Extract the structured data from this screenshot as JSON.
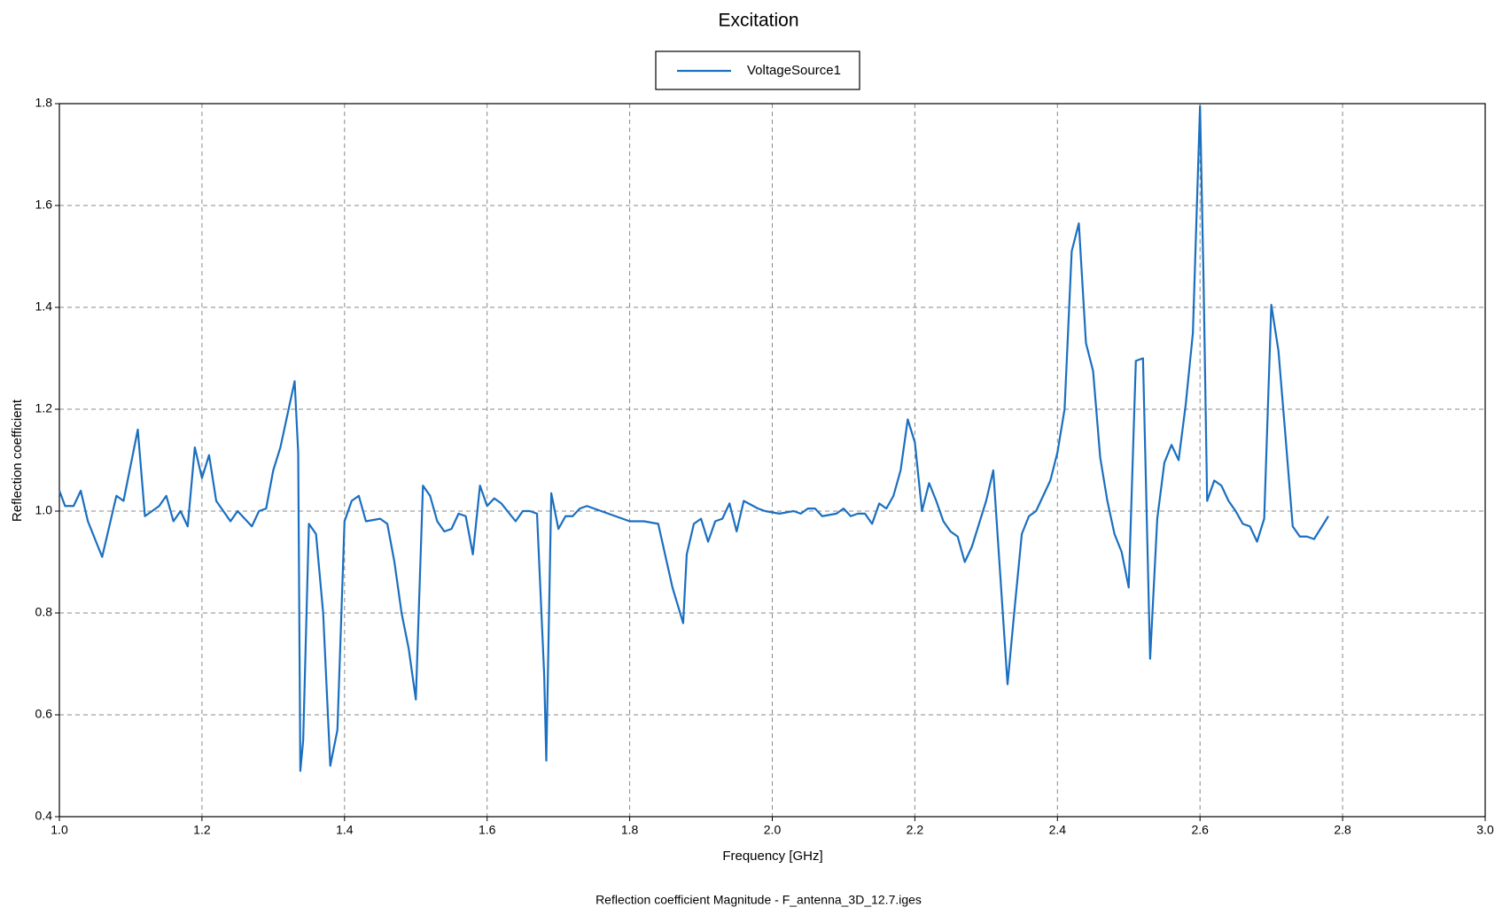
{
  "chart_data": {
    "type": "line",
    "title": "Excitation",
    "xlabel": "Frequency [GHz]",
    "ylabel": "Reflection coefficient",
    "footnote": "Reflection coefficient Magnitude - F_antenna_3D_12.7.iges",
    "legend": "top",
    "grid": true,
    "xlim": [
      1.0,
      3.0
    ],
    "ylim": [
      0.4,
      1.8
    ],
    "xticks": [
      {
        "value": 1,
        "label": "1.0"
      },
      1.2,
      1.4,
      1.6,
      1.8,
      {
        "value": 2,
        "label": "2.0"
      },
      2.2,
      2.4,
      2.6,
      2.8,
      {
        "value": 3,
        "label": "3.0"
      }
    ],
    "yticks": [
      0.4,
      0.6,
      0.8,
      {
        "value": 1,
        "label": "1.0"
      },
      1.2,
      1.4,
      1.6,
      1.8
    ],
    "x": [
      1.0,
      1.008,
      1.02,
      1.03,
      1.04,
      1.06,
      1.07,
      1.08,
      1.09,
      1.11,
      1.12,
      1.14,
      1.15,
      1.16,
      1.17,
      1.18,
      1.19,
      1.2,
      1.21,
      1.22,
      1.24,
      1.25,
      1.27,
      1.28,
      1.29,
      1.3,
      1.31,
      1.33,
      1.335,
      1.338,
      1.342,
      1.35,
      1.36,
      1.37,
      1.38,
      1.39,
      1.4,
      1.41,
      1.42,
      1.43,
      1.45,
      1.46,
      1.47,
      1.48,
      1.49,
      1.5,
      1.51,
      1.52,
      1.53,
      1.54,
      1.55,
      1.56,
      1.57,
      1.58,
      1.59,
      1.6,
      1.61,
      1.62,
      1.64,
      1.65,
      1.66,
      1.67,
      1.68,
      1.683,
      1.69,
      1.7,
      1.71,
      1.72,
      1.73,
      1.74,
      1.76,
      1.78,
      1.8,
      1.82,
      1.84,
      1.86,
      1.875,
      1.88,
      1.89,
      1.9,
      1.91,
      1.92,
      1.93,
      1.94,
      1.95,
      1.96,
      1.98,
      1.99,
      2.01,
      2.03,
      2.04,
      2.05,
      2.06,
      2.07,
      2.09,
      2.1,
      2.11,
      2.12,
      2.13,
      2.14,
      2.15,
      2.16,
      2.17,
      2.18,
      2.19,
      2.2,
      2.21,
      2.22,
      2.23,
      2.24,
      2.25,
      2.26,
      2.27,
      2.28,
      2.29,
      2.3,
      2.31,
      2.32,
      2.33,
      2.34,
      2.35,
      2.36,
      2.37,
      2.38,
      2.39,
      2.4,
      2.41,
      2.42,
      2.43,
      2.44,
      2.45,
      2.46,
      2.47,
      2.48,
      2.49,
      2.5,
      2.51,
      2.52,
      2.53,
      2.54,
      2.55,
      2.56,
      2.57,
      2.58,
      2.59,
      2.6,
      2.605,
      2.61,
      2.62,
      2.63,
      2.64,
      2.65,
      2.66,
      2.67,
      2.68,
      2.69,
      2.7,
      2.71,
      2.72,
      2.73,
      2.74,
      2.75,
      2.76,
      2.78
    ],
    "series": [
      {
        "name": "VoltageSource1",
        "color": "#1a6fc0",
        "values": [
          1.04,
          1.01,
          1.01,
          1.04,
          0.98,
          0.91,
          0.97,
          1.03,
          1.02,
          1.16,
          0.99,
          1.01,
          1.03,
          0.98,
          1.0,
          0.97,
          1.125,
          1.065,
          1.11,
          1.02,
          0.98,
          1.0,
          0.97,
          1.0,
          1.005,
          1.08,
          1.125,
          1.255,
          1.115,
          0.49,
          0.55,
          0.975,
          0.955,
          0.8,
          0.5,
          0.57,
          0.98,
          1.02,
          1.03,
          0.98,
          0.985,
          0.975,
          0.9,
          0.8,
          0.73,
          0.63,
          1.05,
          1.03,
          0.98,
          0.96,
          0.965,
          0.995,
          0.99,
          0.915,
          1.05,
          1.01,
          1.025,
          1.015,
          0.98,
          1.0,
          1.0,
          0.995,
          0.68,
          0.51,
          1.035,
          0.965,
          0.99,
          0.99,
          1.005,
          1.01,
          1.0,
          0.99,
          0.98,
          0.98,
          0.975,
          0.85,
          0.78,
          0.915,
          0.975,
          0.985,
          0.94,
          0.98,
          0.985,
          1.015,
          0.96,
          1.02,
          1.005,
          1.0,
          0.995,
          1.0,
          0.995,
          1.005,
          1.005,
          0.99,
          0.995,
          1.005,
          0.99,
          0.995,
          0.995,
          0.975,
          1.015,
          1.005,
          1.03,
          1.08,
          1.18,
          1.135,
          1.0,
          1.055,
          1.02,
          0.98,
          0.96,
          0.95,
          0.9,
          0.93,
          0.975,
          1.02,
          1.08,
          0.87,
          0.66,
          0.81,
          0.955,
          0.99,
          1.0,
          1.03,
          1.06,
          1.115,
          1.2,
          1.51,
          1.565,
          1.33,
          1.275,
          1.105,
          1.02,
          0.955,
          0.92,
          0.85,
          1.295,
          1.3,
          0.71,
          0.985,
          1.095,
          1.13,
          1.1,
          1.21,
          1.35,
          1.795,
          1.45,
          1.02,
          1.06,
          1.05,
          1.02,
          1.0,
          0.975,
          0.97,
          0.94,
          0.985,
          1.405,
          1.315,
          1.145,
          0.97,
          0.95,
          0.95,
          0.945,
          0.99
        ]
      }
    ]
  }
}
